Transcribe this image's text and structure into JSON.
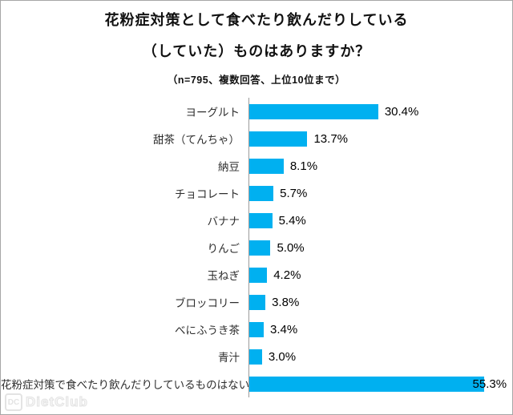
{
  "title": {
    "line1": "花粉症対策として食べたり飲んだりしている",
    "line2": "（していた）ものはありますか？",
    "note": "（n=795、複数回答、上位10位まで）"
  },
  "chart_data": {
    "type": "bar",
    "orientation": "horizontal",
    "title": "花粉症対策として食べたり飲んだりしている（していた）ものはありますか？",
    "subtitle": "（n=795、複数回答、上位10位まで）",
    "categories": [
      "ヨーグルト",
      "甜茶（てんちゃ）",
      "納豆",
      "チョコレート",
      "バナナ",
      "りんご",
      "玉ねぎ",
      "ブロッコリー",
      "べにふうき茶",
      "青汁",
      "花粉症対策で食べたり飲んだりしているものはない"
    ],
    "values": [
      30.4,
      13.7,
      8.1,
      5.7,
      5.4,
      5.0,
      4.2,
      3.8,
      3.4,
      3.0,
      55.3
    ],
    "value_labels": [
      "30.4%",
      "13.7%",
      "8.1%",
      "5.7%",
      "5.4%",
      "5.0%",
      "4.2%",
      "3.8%",
      "3.4%",
      "3.0%",
      "55.3%"
    ],
    "xlabel": "",
    "ylabel": "",
    "xlim": [
      0,
      62
    ],
    "grid": false,
    "legend": "none",
    "bar_color": "#00B0F0",
    "axis_line_color": "#9b9b9b",
    "label_color": "#2e2e2e",
    "value_color": "#000000"
  },
  "watermark": {
    "logo": "DC",
    "text": "DietClub"
  }
}
